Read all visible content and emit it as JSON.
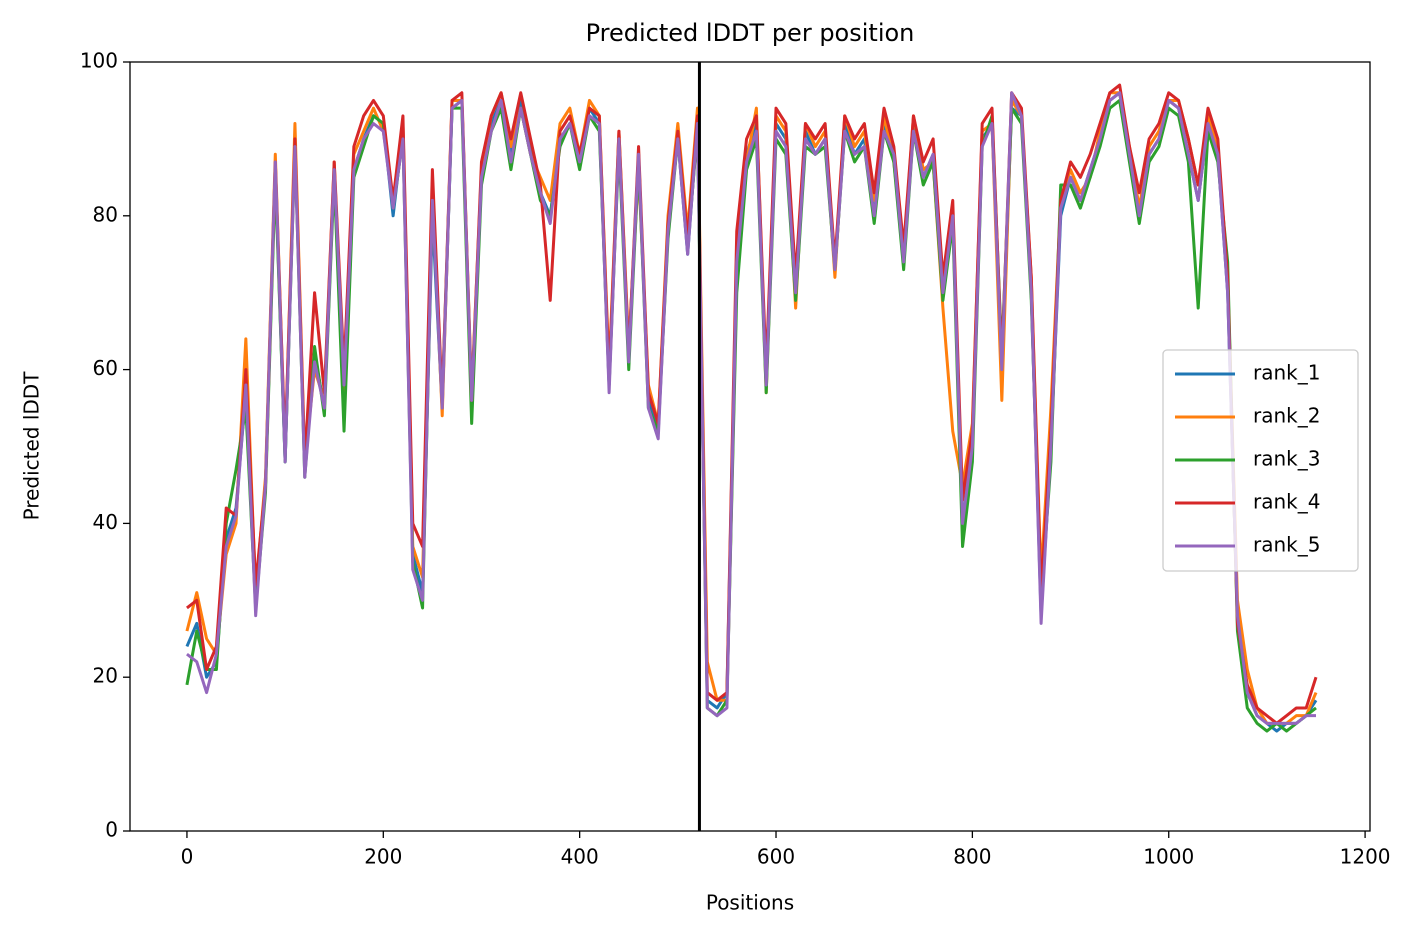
{
  "chart_data": {
    "type": "line",
    "title": "Predicted lDDT per position",
    "xlabel": "Positions",
    "ylabel": "Predicted lDDT",
    "xlim": [
      -58,
      1205
    ],
    "xticks": [
      0,
      200,
      400,
      600,
      800,
      1000,
      1200
    ],
    "ylim": [
      0,
      100
    ],
    "yticks": [
      0,
      20,
      40,
      60,
      80,
      100
    ],
    "grid": false,
    "legend": "center right",
    "vlines": [
      522
    ],
    "vline_color": "#000000",
    "x": [
      0,
      10,
      20,
      30,
      40,
      50,
      60,
      70,
      80,
      90,
      100,
      110,
      120,
      130,
      140,
      150,
      160,
      170,
      180,
      190,
      200,
      210,
      220,
      230,
      240,
      250,
      260,
      270,
      280,
      290,
      300,
      310,
      320,
      330,
      340,
      350,
      360,
      370,
      380,
      390,
      400,
      410,
      420,
      430,
      440,
      450,
      460,
      470,
      480,
      490,
      500,
      510,
      520,
      530,
      540,
      550,
      560,
      570,
      580,
      590,
      600,
      610,
      620,
      630,
      640,
      650,
      660,
      670,
      680,
      690,
      700,
      710,
      720,
      730,
      740,
      750,
      760,
      770,
      780,
      790,
      800,
      810,
      820,
      830,
      840,
      850,
      860,
      870,
      880,
      890,
      900,
      910,
      920,
      930,
      940,
      950,
      960,
      970,
      980,
      990,
      1000,
      1010,
      1020,
      1030,
      1040,
      1050,
      1060,
      1070,
      1080,
      1090,
      1100,
      1110,
      1120,
      1130,
      1140,
      1150
    ],
    "series": [
      {
        "name": "rank_1",
        "color": "#1f77b4",
        "values": [
          24,
          27,
          20,
          22,
          38,
          42,
          57,
          30,
          45,
          86,
          48,
          90,
          47,
          62,
          55,
          86,
          58,
          86,
          90,
          93,
          92,
          80,
          91,
          36,
          31,
          80,
          55,
          94,
          95,
          55,
          85,
          92,
          95,
          88,
          95,
          89,
          83,
          80,
          90,
          92,
          87,
          94,
          92,
          58,
          90,
          62,
          88,
          56,
          52,
          78,
          90,
          75,
          92,
          17,
          16,
          18,
          75,
          88,
          92,
          58,
          92,
          90,
          70,
          91,
          88,
          90,
          73,
          92,
          88,
          90,
          80,
          92,
          88,
          74,
          92,
          85,
          88,
          70,
          80,
          40,
          50,
          90,
          92,
          60,
          94,
          93,
          70,
          28,
          50,
          80,
          85,
          82,
          86,
          90,
          95,
          96,
          88,
          80,
          88,
          90,
          95,
          94,
          88,
          82,
          92,
          88,
          70,
          28,
          18,
          15,
          14,
          13,
          14,
          14,
          15,
          17
        ]
      },
      {
        "name": "rank_2",
        "color": "#ff7f0e",
        "values": [
          26,
          31,
          25,
          23,
          36,
          40,
          64,
          31,
          46,
          88,
          49,
          92,
          48,
          60,
          56,
          87,
          57,
          88,
          91,
          94,
          91,
          82,
          92,
          37,
          33,
          84,
          54,
          95,
          95,
          57,
          86,
          93,
          96,
          89,
          94,
          88,
          85,
          82,
          92,
          94,
          88,
          95,
          93,
          60,
          91,
          63,
          86,
          58,
          53,
          80,
          92,
          78,
          94,
          22,
          17,
          17,
          72,
          87,
          94,
          57,
          93,
          91,
          68,
          92,
          89,
          91,
          72,
          93,
          89,
          91,
          82,
          93,
          87,
          75,
          93,
          86,
          87,
          68,
          52,
          45,
          53,
          91,
          92,
          56,
          95,
          93,
          72,
          33,
          55,
          82,
          86,
          83,
          85,
          91,
          96,
          96,
          89,
          81,
          89,
          91,
          95,
          95,
          90,
          84,
          93,
          89,
          72,
          30,
          21,
          16,
          14,
          14,
          14,
          15,
          15,
          18
        ]
      },
      {
        "name": "rank_3",
        "color": "#2ca02c",
        "values": [
          19,
          26,
          21,
          21,
          40,
          47,
          55,
          29,
          44,
          85,
          48,
          89,
          46,
          63,
          54,
          85,
          52,
          85,
          89,
          93,
          92,
          81,
          90,
          35,
          29,
          82,
          56,
          94,
          94,
          53,
          84,
          91,
          94,
          86,
          94,
          88,
          82,
          80,
          89,
          92,
          86,
          93,
          91,
          58,
          89,
          60,
          87,
          55,
          52,
          77,
          90,
          76,
          91,
          16,
          15,
          17,
          70,
          86,
          90,
          57,
          90,
          88,
          69,
          89,
          88,
          89,
          73,
          91,
          87,
          89,
          79,
          91,
          87,
          73,
          91,
          84,
          87,
          69,
          79,
          37,
          48,
          89,
          93,
          62,
          94,
          92,
          69,
          30,
          48,
          84,
          84,
          81,
          85,
          89,
          94,
          95,
          87,
          79,
          87,
          89,
          94,
          93,
          87,
          68,
          91,
          87,
          74,
          26,
          16,
          14,
          13,
          14,
          13,
          14,
          15,
          16
        ]
      },
      {
        "name": "rank_4",
        "color": "#d62728",
        "values": [
          29,
          30,
          21,
          24,
          42,
          41,
          60,
          32,
          45,
          87,
          50,
          90,
          48,
          70,
          57,
          87,
          60,
          89,
          93,
          95,
          93,
          82,
          93,
          40,
          37,
          86,
          56,
          95,
          96,
          56,
          87,
          93,
          96,
          90,
          96,
          90,
          84,
          69,
          91,
          93,
          88,
          94,
          93,
          59,
          91,
          62,
          89,
          57,
          53,
          79,
          91,
          77,
          93,
          18,
          17,
          18,
          78,
          90,
          93,
          60,
          94,
          92,
          72,
          92,
          90,
          92,
          74,
          93,
          90,
          92,
          83,
          94,
          89,
          76,
          93,
          87,
          90,
          72,
          82,
          43,
          52,
          92,
          94,
          61,
          96,
          94,
          72,
          31,
          52,
          82,
          87,
          85,
          88,
          92,
          96,
          97,
          89,
          83,
          90,
          92,
          96,
          95,
          90,
          84,
          94,
          90,
          72,
          27,
          19,
          16,
          15,
          14,
          15,
          16,
          16,
          20
        ]
      },
      {
        "name": "rank_5",
        "color": "#9467bd",
        "values": [
          23,
          22,
          18,
          23,
          37,
          41,
          58,
          28,
          45,
          87,
          48,
          89,
          46,
          61,
          55,
          86,
          58,
          86,
          90,
          92,
          91,
          81,
          90,
          34,
          30,
          82,
          55,
          94,
          95,
          56,
          85,
          91,
          95,
          87,
          94,
          88,
          83,
          79,
          90,
          92,
          87,
          93,
          92,
          57,
          90,
          61,
          88,
          55,
          51,
          78,
          90,
          75,
          92,
          16,
          15,
          16,
          74,
          87,
          91,
          58,
          91,
          89,
          70,
          90,
          88,
          90,
          73,
          91,
          88,
          89,
          80,
          91,
          88,
          74,
          91,
          85,
          88,
          70,
          80,
          40,
          50,
          89,
          92,
          60,
          96,
          93,
          70,
          27,
          50,
          81,
          85,
          82,
          86,
          90,
          95,
          96,
          88,
          80,
          88,
          90,
          95,
          94,
          88,
          82,
          92,
          88,
          70,
          28,
          18,
          15,
          14,
          14,
          14,
          14,
          15,
          15
        ]
      }
    ]
  }
}
